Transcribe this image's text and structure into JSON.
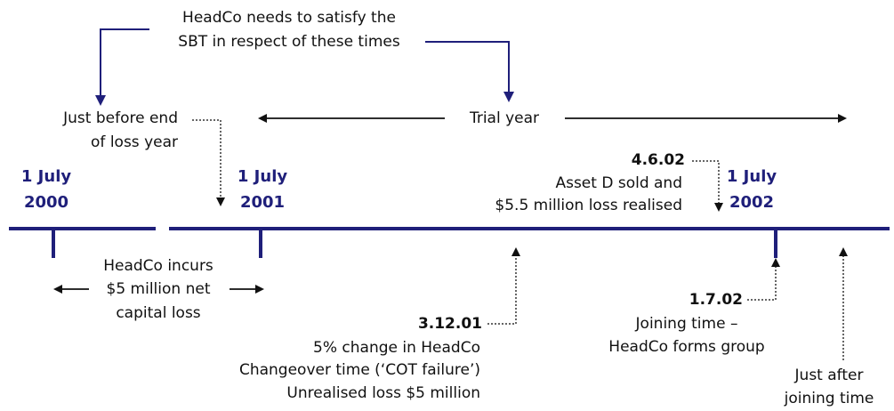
{
  "top_note": [
    "HeadCo needs to satisfy the",
    "SBT in respect of these times"
  ],
  "loss_year_end": [
    "Just before end",
    "of loss year"
  ],
  "trial_year": "Trial year",
  "dates": [
    [
      "1 July",
      "2000"
    ],
    [
      "1 July",
      "2001"
    ],
    [
      "1 July",
      "2002"
    ]
  ],
  "asset_sale": {
    "date": "4.6.02",
    "lines": [
      "Asset D sold and",
      "$5.5 million loss realised"
    ]
  },
  "capital_loss": [
    "HeadCo incurs",
    "$5 million net",
    "capital loss"
  ],
  "changeover": {
    "date": "3.12.01",
    "lines": [
      "5% change in HeadCo",
      "Changeover time (‘COT failure’)",
      "Unrealised loss $5 million"
    ]
  },
  "joining": {
    "date": "1.7.02",
    "lines": [
      "Joining time –",
      "HeadCo forms group"
    ]
  },
  "after_joining": [
    "Just after",
    "joining time"
  ]
}
